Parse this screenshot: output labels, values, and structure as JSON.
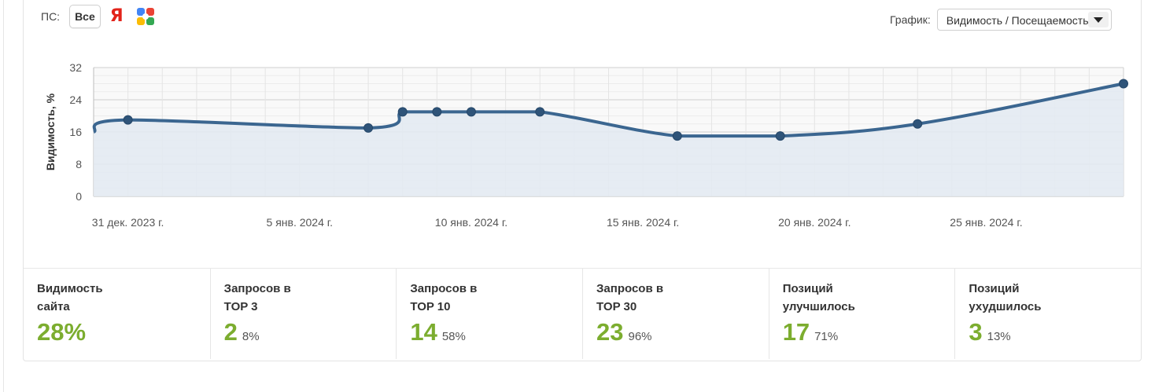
{
  "ps": {
    "label": "ПС:",
    "all_button": "Все",
    "yandex_glyph": "Я",
    "google_icon": "google-icon"
  },
  "graph_select": {
    "label": "График:",
    "value": "Видимость / Посещаемость"
  },
  "colors": {
    "line": "#3b6690",
    "area": "#e3eaf2",
    "accent": "#7cad2f"
  },
  "chart_data": {
    "type": "area",
    "title": "",
    "ylabel": "Видимость, %",
    "xlabel": "",
    "ylim": [
      0,
      32
    ],
    "yticks": [
      0,
      8,
      16,
      24,
      32
    ],
    "xlim": [
      "2023-12-30",
      "2024-01-29"
    ],
    "x_tick_labels": [
      {
        "date": "2023-12-31",
        "label": "31 дек. 2023 г."
      },
      {
        "date": "2024-01-05",
        "label": "5 янв. 2024 г."
      },
      {
        "date": "2024-01-10",
        "label": "10 янв. 2024 г."
      },
      {
        "date": "2024-01-15",
        "label": "15 янв. 2024 г."
      },
      {
        "date": "2024-01-20",
        "label": "20 янв. 2024 г."
      },
      {
        "date": "2024-01-25",
        "label": "25 янв. 2024 г."
      }
    ],
    "series": [
      {
        "points": [
          {
            "date": "2023-12-30",
            "value": 16
          },
          {
            "date": "2023-12-31",
            "value": 19
          },
          {
            "date": "2024-01-07",
            "value": 17
          },
          {
            "date": "2024-01-08",
            "value": 21
          },
          {
            "date": "2024-01-09",
            "value": 21
          },
          {
            "date": "2024-01-10",
            "value": 21
          },
          {
            "date": "2024-01-12",
            "value": 21
          },
          {
            "date": "2024-01-16",
            "value": 15
          },
          {
            "date": "2024-01-19",
            "value": 15
          },
          {
            "date": "2024-01-23",
            "value": 18
          },
          {
            "date": "2024-01-29",
            "value": 28
          }
        ],
        "markers": [
          false,
          true,
          true,
          true,
          true,
          true,
          true,
          true,
          true,
          true,
          true
        ]
      }
    ],
    "grid": true
  },
  "stats": [
    {
      "title_1": "Видимость",
      "title_2": "сайта",
      "value": "28%",
      "pct": ""
    },
    {
      "title_1": "Запросов в",
      "title_2": "TOP 3",
      "value": "2",
      "pct": "8%"
    },
    {
      "title_1": "Запросов в",
      "title_2": "TOP 10",
      "value": "14",
      "pct": "58%"
    },
    {
      "title_1": "Запросов в",
      "title_2": "TOP 30",
      "value": "23",
      "pct": "96%"
    },
    {
      "title_1": "Позиций",
      "title_2": "улучшилось",
      "value": "17",
      "pct": "71%"
    },
    {
      "title_1": "Позиций",
      "title_2": "ухудшилось",
      "value": "3",
      "pct": "13%"
    }
  ]
}
